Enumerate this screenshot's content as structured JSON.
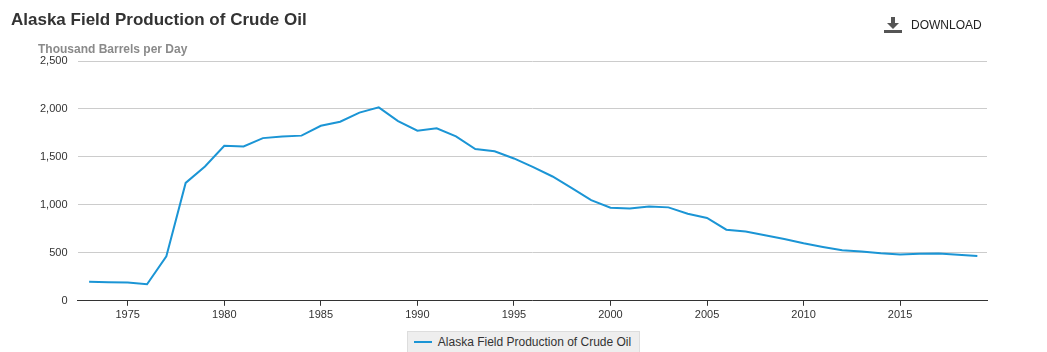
{
  "chart_data": {
    "type": "line",
    "title": "Alaska Field Production of Crude Oil",
    "subtitle": "Thousand Barrels per Day",
    "annotations": [
      "DOWNLOAD"
    ],
    "x": [
      1973,
      1974,
      1975,
      1976,
      1977,
      1978,
      1979,
      1980,
      1981,
      1982,
      1983,
      1984,
      1985,
      1986,
      1987,
      1988,
      1989,
      1990,
      1991,
      1992,
      1993,
      1994,
      1995,
      1996,
      1997,
      1998,
      1999,
      2000,
      2001,
      2002,
      2003,
      2004,
      2005,
      2006,
      2007,
      2008,
      2009,
      2010,
      2011,
      2012,
      2013,
      2014,
      2015,
      2016,
      2017,
      2018,
      2019
    ],
    "series": [
      {
        "name": "Alaska Field Production of Crude Oil",
        "color": "#1b95d5",
        "values": [
          198,
          193,
          191,
          173,
          464,
          1229,
          1401,
          1617,
          1609,
          1696,
          1714,
          1722,
          1825,
          1867,
          1962,
          2017,
          1874,
          1773,
          1798,
          1714,
          1582,
          1559,
          1484,
          1393,
          1296,
          1175,
          1050,
          970,
          963,
          984,
          974,
          908,
          864,
          741,
          722,
          683,
          645,
          600,
          561,
          526,
          515,
          496,
          483,
          490,
          494,
          479,
          466
        ]
      }
    ],
    "xlim": [
      1972.4,
      2019.5
    ],
    "xticks": [
      1975,
      1980,
      1985,
      1990,
      1995,
      2000,
      2005,
      2010,
      2015
    ],
    "ylim": [
      0,
      2500
    ],
    "yticks": [
      0,
      500,
      {
        "value": 1000,
        "label": "1,000"
      },
      {
        "value": 1500,
        "label": "1,500"
      },
      {
        "value": 2000,
        "label": "2,000"
      },
      {
        "value": 2500,
        "label": "2,500"
      }
    ],
    "grid": true,
    "legend": "bottom"
  }
}
